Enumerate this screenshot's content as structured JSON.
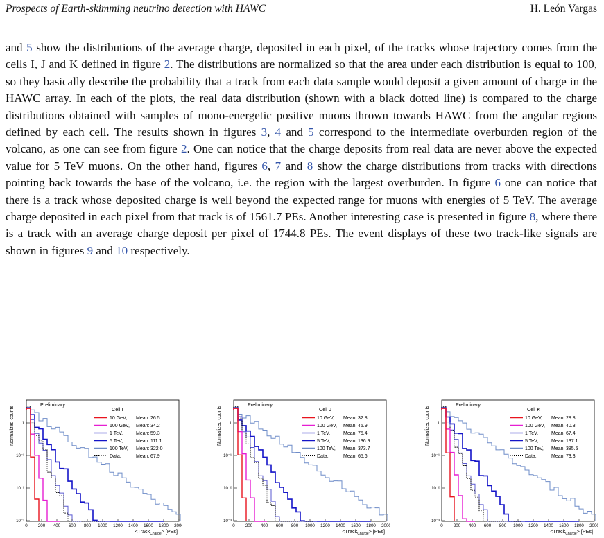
{
  "header": {
    "title": "Prospects of Earth-skimming neutrino detection with HAWC",
    "author": "H. León Vargas"
  },
  "paragraph": {
    "p1": "and ",
    "r1": "5",
    "p2": " show the distributions of the average charge, deposited in each pixel, of the tracks whose trajectory comes from the cells I, J and K defined in figure ",
    "r2": "2",
    "p3": ". The distributions are normalized so that the area under each distribution is equal to 100, so they basically describe the probability that a track from each data sample would deposit a given amount of charge in the HAWC array. In each of the plots, the real data distribution (shown with a black dotted line) is compared to the charge distributions obtained with samples of mono-energetic positive muons thrown towards HAWC from the angular regions defined by each cell. The results shown in figures ",
    "r3": "3",
    "p4": ", ",
    "r4": "4",
    "p5": " and ",
    "r5": "5",
    "p6": " correspond to the intermediate overburden region of the volcano, as one can see from figure ",
    "r6": "2",
    "p7": ". One can notice that the charge deposits from real data are never above the expected value for 5 TeV muons. On the other hand, figures ",
    "r7": "6",
    "p8": ", ",
    "r8": "7",
    "p9": " and ",
    "r9": "8",
    "p10": " show the charge distributions from tracks with directions pointing back towards the base of the volcano, i.e. the region with the largest overburden. In figure ",
    "r10": "6",
    "p11": " one can notice that there is a track whose deposited charge is well beyond the expected range for muons with energies of 5 TeV. The average charge deposited in each pixel from that track is of 1561.7 PEs. Another interesting case is presented in figure ",
    "r11": "8",
    "p12": ", where there is a track with an average charge deposit per pixel of 1744.8 PEs. The event displays of these two track-like signals are shown in figures ",
    "r12": "9",
    "p13": " and ",
    "r13": "10",
    "p14": " respectively."
  },
  "colors": {
    "10 GeV": "#e8141e",
    "100 GeV": "#e61ed2",
    "1 TeV": "#5a5ad2",
    "5 TeV": "#1414c8",
    "100 TeV": "#6e8cc8",
    "Data": "#000000",
    "ref": "#3355aa"
  },
  "chart_data": [
    {
      "type": "line",
      "title": "Preliminary",
      "cell_label": "Cell I",
      "xlabel_main": "<Track",
      "xlabel_sub": "Charge",
      "xlabel_tail": "> [PEs]",
      "ylabel": "Normalized counts",
      "xlim": [
        0,
        2000
      ],
      "ylim": [
        0.001,
        10
      ],
      "y_scale": "log",
      "x_ticks": [
        0,
        200,
        400,
        600,
        800,
        1000,
        1200,
        1400,
        1600,
        1800,
        2000
      ],
      "y_ticks": [
        "10⁻³",
        "10⁻²",
        "10⁻¹",
        "1"
      ],
      "legend": [
        {
          "series": "10 GeV",
          "energy": "10 GeV,",
          "mean_label": "Mean:",
          "mean": "26.5"
        },
        {
          "series": "100 GeV",
          "energy": "100 GeV,",
          "mean_label": "Mean:",
          "mean": "34.2"
        },
        {
          "series": "1 TeV",
          "energy": "1 TeV,",
          "mean_label": "Mean:",
          "mean": "59.3"
        },
        {
          "series": "5 TeV",
          "energy": "5 TeV,",
          "mean_label": "Mean:",
          "mean": "111.1"
        },
        {
          "series": "100 TeV",
          "energy": "100 TeV,",
          "mean_label": "Mean:",
          "mean": "322.0"
        },
        {
          "series": "Data",
          "energy": "Data,",
          "mean_label": "Mean:",
          "mean": "67.9"
        }
      ]
    },
    {
      "type": "line",
      "title": "Preliminary",
      "cell_label": "Cell J",
      "xlabel_main": "<Track",
      "xlabel_sub": "Charge",
      "xlabel_tail": "> [PEs]",
      "ylabel": "Normalized counts",
      "xlim": [
        0,
        2000
      ],
      "ylim": [
        0.001,
        10
      ],
      "y_scale": "log",
      "x_ticks": [
        0,
        200,
        400,
        600,
        800,
        1000,
        1200,
        1400,
        1600,
        1800,
        2000
      ],
      "y_ticks": [
        "10⁻³",
        "10⁻²",
        "10⁻¹",
        "1"
      ],
      "legend": [
        {
          "series": "10 GeV",
          "energy": "10 GeV,",
          "mean_label": "Mean:",
          "mean": "32.8"
        },
        {
          "series": "100 GeV",
          "energy": "100 GeV,",
          "mean_label": "Mean:",
          "mean": "45.9"
        },
        {
          "series": "1 TeV",
          "energy": "1 TeV,",
          "mean_label": "Mean:",
          "mean": "75.4"
        },
        {
          "series": "5 TeV",
          "energy": "5 TeV,",
          "mean_label": "Mean:",
          "mean": "136.9"
        },
        {
          "series": "100 TeV",
          "energy": "100 TeV,",
          "mean_label": "Mean:",
          "mean": "373.7"
        },
        {
          "series": "Data",
          "energy": "Data,",
          "mean_label": "Mean:",
          "mean": "65.6"
        }
      ]
    },
    {
      "type": "line",
      "title": "Preliminary",
      "cell_label": "Cell K",
      "xlabel_main": "<Track",
      "xlabel_sub": "Charge",
      "xlabel_tail": "> [PEs]",
      "ylabel": "Normalized counts",
      "xlim": [
        0,
        2000
      ],
      "ylim": [
        0.001,
        10
      ],
      "y_scale": "log",
      "x_ticks": [
        0,
        200,
        400,
        600,
        800,
        1000,
        1200,
        1400,
        1600,
        1800,
        2000
      ],
      "y_ticks": [
        "10⁻³",
        "10⁻²",
        "10⁻¹",
        "1"
      ],
      "legend": [
        {
          "series": "10 GeV",
          "energy": "10 GeV,",
          "mean_label": "Mean:",
          "mean": "28.8"
        },
        {
          "series": "100 GeV",
          "energy": "100 GeV,",
          "mean_label": "Mean:",
          "mean": "40.3"
        },
        {
          "series": "1 TeV",
          "energy": "1 TeV,",
          "mean_label": "Mean:",
          "mean": "67.4"
        },
        {
          "series": "5 TeV",
          "energy": "5 TeV,",
          "mean_label": "Mean:",
          "mean": "137.1"
        },
        {
          "series": "100 TeV",
          "energy": "100 TeV,",
          "mean_label": "Mean:",
          "mean": "385.5"
        },
        {
          "series": "Data",
          "energy": "Data,",
          "mean_label": "Mean:",
          "mean": "73.3"
        }
      ]
    }
  ]
}
